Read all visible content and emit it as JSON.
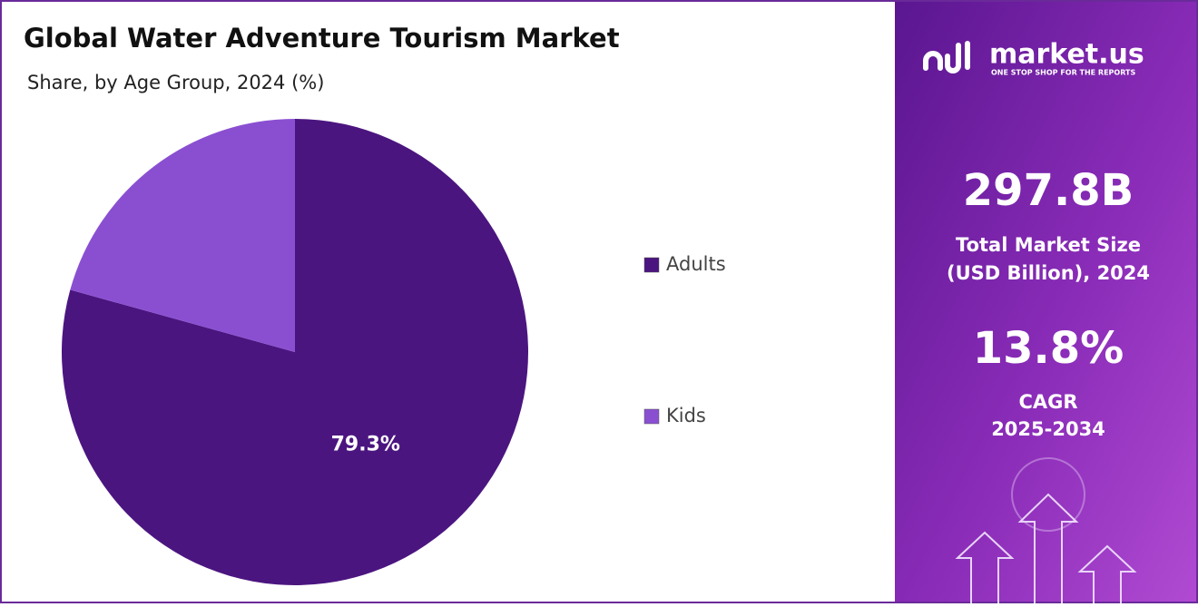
{
  "chart_data": {
    "type": "pie",
    "title": "Global Water Adventure Tourism Market",
    "subtitle": "Share, by Age Group, 2024 (%)",
    "categories": [
      "Adults",
      "Kids"
    ],
    "values": [
      79.3,
      20.7
    ],
    "value_labels": [
      "79.3%",
      null
    ],
    "colors": [
      "#4b1580",
      "#8a4fd1"
    ],
    "legend": "right"
  },
  "brand": {
    "name": "market.us",
    "tagline": "ONE STOP SHOP FOR THE REPORTS"
  },
  "stats": [
    {
      "value": "297.8B",
      "label": [
        "Total Market Size",
        "(USD Billion), 2024"
      ]
    },
    {
      "value": "13.8%",
      "label": [
        "CAGR",
        "2025-2034"
      ]
    }
  ]
}
